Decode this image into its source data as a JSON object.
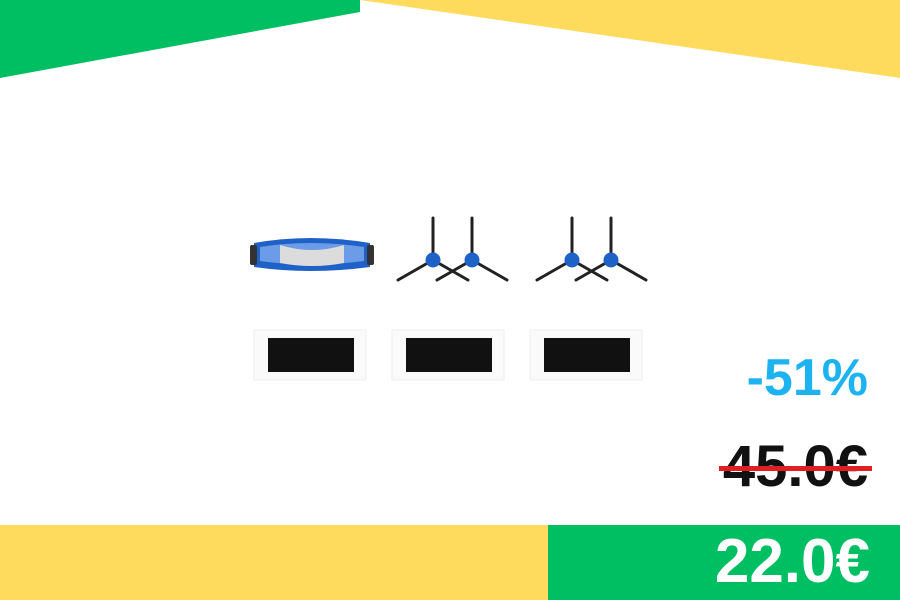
{
  "colors": {
    "green": "#00BF63",
    "yellow": "#FEDB5C",
    "discount_blue": "#1CB3F0",
    "strike_red": "#E02020"
  },
  "product": {
    "image": "robot-vacuum-accessory-kit",
    "items": [
      "main-roller-brush",
      "side-brush",
      "side-brush",
      "side-brush",
      "side-brush",
      "filter",
      "filter",
      "filter"
    ]
  },
  "pricing": {
    "discount": "-51%",
    "old_price": "45.0€",
    "new_price": "22.0€"
  }
}
